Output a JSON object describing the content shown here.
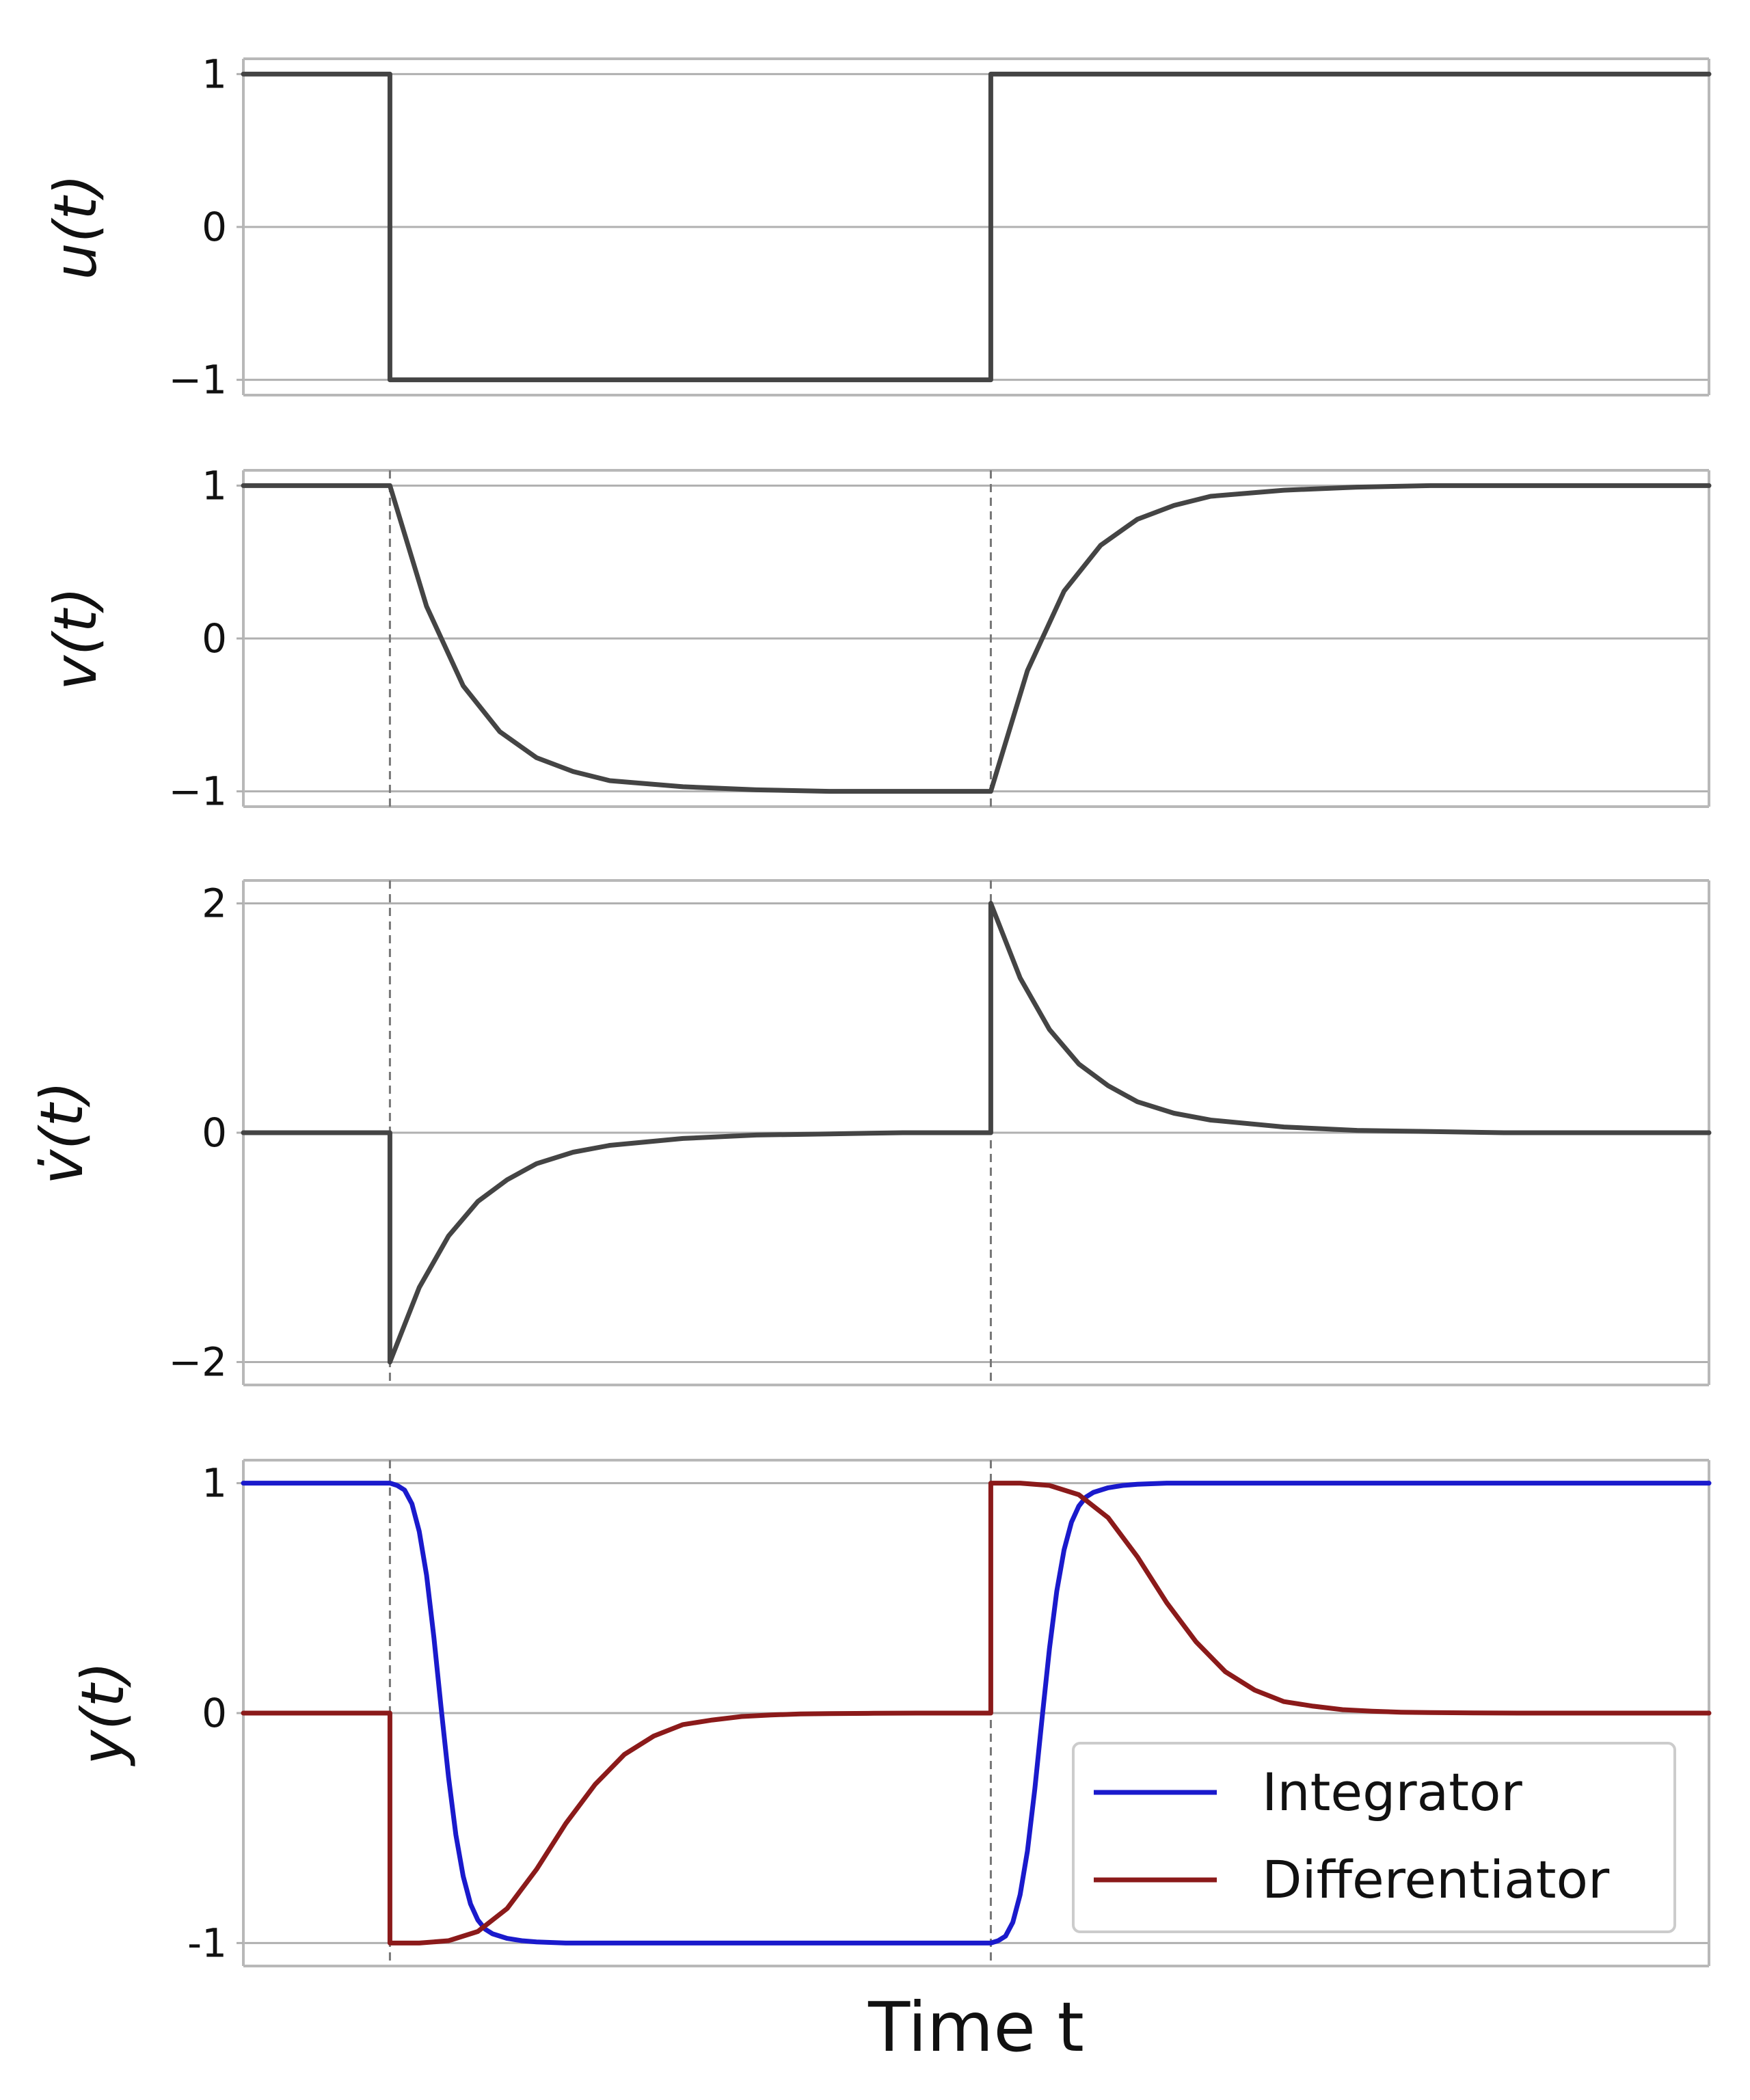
{
  "chart_data": [
    {
      "type": "line",
      "ylabel": "u(t)",
      "yticks": [
        {
          "value": 1,
          "label": "1"
        },
        {
          "value": 0,
          "label": "0"
        },
        {
          "value": -1,
          "label": "−1"
        }
      ],
      "ylim": [
        -1.1,
        1.1
      ],
      "xlim": [
        0,
        10
      ],
      "switch_times": [
        1,
        5.1
      ],
      "grid": "horizontal",
      "series": [
        {
          "color": "#444444",
          "x": [
            0,
            1,
            1,
            5.1,
            5.1,
            10
          ],
          "y": [
            1,
            1,
            -1,
            -1,
            1,
            1
          ]
        }
      ]
    },
    {
      "type": "line",
      "ylabel": "v(t)",
      "yticks": [
        {
          "value": 1,
          "label": "1"
        },
        {
          "value": 0,
          "label": "0"
        },
        {
          "value": -1,
          "label": "−1"
        }
      ],
      "ylim": [
        -1.1,
        1.1
      ],
      "xlim": [
        0,
        10
      ],
      "switch_times": [
        1,
        5.1
      ],
      "grid": "horizontal",
      "series": [
        {
          "color": "#444444",
          "x": [
            0,
            1,
            1.25,
            1.5,
            1.75,
            2,
            2.25,
            2.5,
            3,
            3.5,
            4,
            4.5,
            5.1,
            5.35,
            5.6,
            5.85,
            6.1,
            6.35,
            6.6,
            7.1,
            7.6,
            8.1,
            8.6,
            10
          ],
          "y": [
            1,
            1,
            0.21,
            -0.31,
            -0.61,
            -0.78,
            -0.87,
            -0.93,
            -0.97,
            -0.99,
            -1,
            -1,
            -1,
            -0.21,
            0.31,
            0.61,
            0.78,
            0.87,
            0.93,
            0.97,
            0.99,
            1,
            1,
            1
          ]
        }
      ]
    },
    {
      "type": "line",
      "ylabel": "v̇(t)",
      "yticks": [
        {
          "value": 2,
          "label": "2"
        },
        {
          "value": 0,
          "label": "0"
        },
        {
          "value": -2,
          "label": "−2"
        }
      ],
      "ylim": [
        -2.2,
        2.2
      ],
      "xlim": [
        0,
        10
      ],
      "switch_times": [
        1,
        5.1
      ],
      "grid": "horizontal",
      "series": [
        {
          "color": "#444444",
          "x": [
            0,
            1,
            1,
            1.2,
            1.4,
            1.6,
            1.8,
            2,
            2.25,
            2.5,
            3,
            3.5,
            4,
            4.5,
            5.1,
            5.1,
            5.3,
            5.5,
            5.7,
            5.9,
            6.1,
            6.35,
            6.6,
            7.1,
            7.6,
            8.1,
            8.6,
            10
          ],
          "y": [
            0,
            0,
            -2,
            -1.35,
            -0.9,
            -0.6,
            -0.41,
            -0.27,
            -0.17,
            -0.11,
            -0.05,
            -0.02,
            -0.01,
            0,
            0,
            2,
            1.35,
            0.9,
            0.6,
            0.41,
            0.27,
            0.17,
            0.11,
            0.05,
            0.02,
            0.01,
            0,
            0
          ]
        }
      ]
    },
    {
      "type": "line",
      "ylabel": "y(t)",
      "xlabel": "Time t",
      "yticks": [
        {
          "value": 1,
          "label": "1"
        },
        {
          "value": 0,
          "label": "0"
        },
        {
          "value": -1,
          "label": "-1"
        }
      ],
      "ylim": [
        -1.1,
        1.1
      ],
      "xlim": [
        0,
        10
      ],
      "switch_times": [
        1,
        5.1
      ],
      "grid": "horizontal",
      "legend": "lower right",
      "series": [
        {
          "name": "Integrator",
          "color": "#1a1acc",
          "x": [
            0,
            1,
            1.05,
            1.1,
            1.15,
            1.2,
            1.25,
            1.3,
            1.35,
            1.4,
            1.45,
            1.5,
            1.55,
            1.6,
            1.65,
            1.7,
            1.8,
            1.9,
            2.0,
            2.2,
            2.5,
            3,
            4,
            5.1,
            5.15,
            5.2,
            5.25,
            5.3,
            5.35,
            5.4,
            5.45,
            5.5,
            5.55,
            5.6,
            5.65,
            5.7,
            5.75,
            5.8,
            5.9,
            6.0,
            6.1,
            6.3,
            6.6,
            7.1,
            8,
            10
          ],
          "y": [
            1,
            1,
            0.99,
            0.97,
            0.91,
            0.79,
            0.6,
            0.33,
            0.02,
            -0.28,
            -0.53,
            -0.71,
            -0.83,
            -0.9,
            -0.94,
            -0.96,
            -0.98,
            -0.99,
            -0.995,
            -1,
            -1,
            -1,
            -1,
            -1,
            -0.99,
            -0.97,
            -0.91,
            -0.79,
            -0.6,
            -0.33,
            -0.02,
            0.28,
            0.53,
            0.71,
            0.83,
            0.9,
            0.94,
            0.96,
            0.98,
            0.99,
            0.995,
            1,
            1,
            1,
            1,
            1
          ]
        },
        {
          "name": "Differentiator",
          "color": "#8b1a1a",
          "x": [
            0,
            1,
            1,
            1.2,
            1.4,
            1.6,
            1.8,
            2,
            2.2,
            2.4,
            2.6,
            2.8,
            3,
            3.2,
            3.4,
            3.6,
            3.8,
            4.0,
            4.3,
            4.6,
            5.1,
            5.1,
            5.3,
            5.5,
            5.7,
            5.9,
            6.1,
            6.3,
            6.5,
            6.7,
            6.9,
            7.1,
            7.3,
            7.5,
            7.7,
            7.9,
            8.1,
            8.4,
            8.7,
            9.2,
            10
          ],
          "y": [
            0,
            0,
            -1,
            -1,
            -0.99,
            -0.95,
            -0.85,
            -0.68,
            -0.48,
            -0.31,
            -0.18,
            -0.1,
            -0.05,
            -0.03,
            -0.015,
            -0.008,
            -0.004,
            -0.002,
            -0.001,
            0,
            0,
            1,
            1,
            0.99,
            0.95,
            0.85,
            0.68,
            0.48,
            0.31,
            0.18,
            0.1,
            0.05,
            0.03,
            0.015,
            0.008,
            0.004,
            0.002,
            0.001,
            0,
            0,
            0
          ]
        }
      ]
    }
  ]
}
